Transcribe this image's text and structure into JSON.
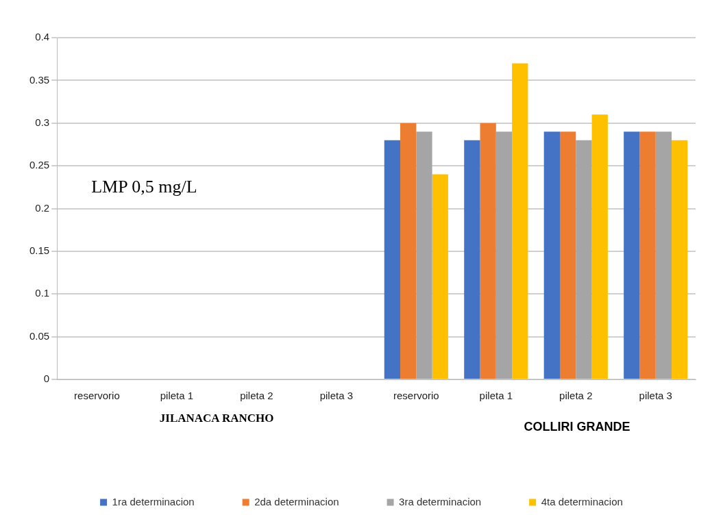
{
  "chart_data": {
    "type": "bar",
    "categories": [
      "reservorio",
      "pileta 1",
      "pileta 2",
      "pileta 3",
      "reservorio",
      "pileta 1",
      "pileta 2",
      "pileta 3"
    ],
    "series": [
      {
        "name": "1ra determinacion",
        "color": "#4472c4",
        "values": [
          0,
          0,
          0,
          0,
          0.28,
          0.28,
          0.29,
          0.29
        ]
      },
      {
        "name": "2da determinacion",
        "color": "#ed7d31",
        "values": [
          0,
          0,
          0,
          0,
          0.3,
          0.3,
          0.29,
          0.29
        ]
      },
      {
        "name": "3ra determinacion",
        "color": "#a5a5a5",
        "values": [
          0,
          0,
          0,
          0,
          0.29,
          0.29,
          0.28,
          0.29
        ]
      },
      {
        "name": "4ta determinacion",
        "color": "#ffc000",
        "values": [
          0,
          0,
          0,
          0,
          0.24,
          0.37,
          0.31,
          0.28
        ]
      }
    ],
    "ylim": [
      0,
      0.4
    ],
    "yticks": [
      0,
      0.05,
      0.1,
      0.15,
      0.2,
      0.25,
      0.3,
      0.35,
      0.4
    ],
    "grid": "y",
    "legend": "bottom",
    "annotations": [
      "LMP 0,5 mg/L",
      "JILANACA RANCHO",
      "COLLIRI GRANDE"
    ]
  }
}
